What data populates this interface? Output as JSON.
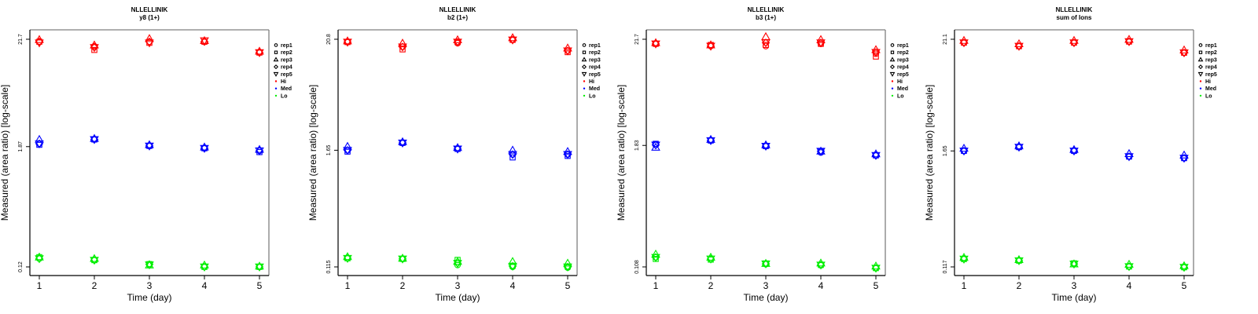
{
  "legend": {
    "shapes": [
      {
        "label": "rep1",
        "shape": "circle"
      },
      {
        "label": "rep2",
        "shape": "square"
      },
      {
        "label": "rep3",
        "shape": "triangle-up"
      },
      {
        "label": "rep4",
        "shape": "diamond"
      },
      {
        "label": "rep5",
        "shape": "triangle-down"
      }
    ],
    "colors": [
      {
        "label": "Hi",
        "color": "#ff0000"
      },
      {
        "label": "Med",
        "color": "#0000ff"
      },
      {
        "label": "Lo",
        "color": "#00ee00"
      }
    ],
    "placement": "right"
  },
  "chart_data": [
    {
      "type": "scatter",
      "title": "NLLELLINIK",
      "subtitle": "y8 (1+)",
      "xlabel": "Time (day)",
      "ylabel": "Measured (area ratio) [log-scale]",
      "yscale": "log",
      "x": [
        1,
        2,
        3,
        4,
        5
      ],
      "xticks": [
        "1",
        "2",
        "3",
        "4",
        "5"
      ],
      "yticks": [
        {
          "value": 21.7,
          "label": "21.7"
        },
        {
          "value": 1.87,
          "label": "1.87"
        },
        {
          "value": 0.12,
          "label": "0.12"
        }
      ],
      "ylim": [
        0.105,
        27
      ],
      "series": [
        {
          "name": "Hi",
          "color": "#ff0000",
          "reps": [
            [
              20.5,
              18.5,
              20.5,
              20.5,
              16.0
            ],
            [
              20.5,
              17.0,
              20.0,
              20.5,
              16.0
            ],
            [
              21.5,
              19.0,
              22.0,
              21.0,
              16.5
            ],
            [
              20.5,
              18.0,
              20.5,
              20.5,
              16.0
            ],
            [
              20.0,
              18.0,
              20.0,
              21.0,
              16.0
            ]
          ]
        },
        {
          "name": "Med",
          "color": "#0000ff",
          "reps": [
            [
              2.0,
              2.2,
              1.9,
              1.8,
              1.7
            ],
            [
              1.95,
              2.2,
              1.9,
              1.8,
              1.65
            ],
            [
              2.2,
              2.25,
              1.95,
              1.85,
              1.75
            ],
            [
              2.0,
              2.2,
              1.9,
              1.8,
              1.7
            ],
            [
              2.0,
              2.2,
              1.9,
              1.8,
              1.7
            ]
          ]
        },
        {
          "name": "Lo",
          "color": "#00ee00",
          "reps": [
            [
              0.145,
              0.14,
              0.125,
              0.12,
              0.12
            ],
            [
              0.15,
              0.14,
              0.128,
              0.12,
              0.12
            ],
            [
              0.15,
              0.145,
              0.125,
              0.125,
              0.122
            ],
            [
              0.145,
              0.14,
              0.127,
              0.12,
              0.12
            ],
            [
              0.145,
              0.14,
              0.126,
              0.12,
              0.12
            ]
          ]
        }
      ]
    },
    {
      "type": "scatter",
      "title": "NLLELLINIK",
      "subtitle": "b2 (1+)",
      "xlabel": "Time (day)",
      "ylabel": "Measured (area ratio) [log-scale]",
      "yscale": "log",
      "x": [
        1,
        2,
        3,
        4,
        5
      ],
      "xticks": [
        "1",
        "2",
        "3",
        "4",
        "5"
      ],
      "yticks": [
        {
          "value": 20.8,
          "label": "20.8"
        },
        {
          "value": 1.65,
          "label": "1.65"
        },
        {
          "value": 0.115,
          "label": "0.115"
        }
      ],
      "ylim": [
        0.1,
        25
      ],
      "series": [
        {
          "name": "Hi",
          "color": "#ff0000",
          "reps": [
            [
              19.5,
              17.5,
              19.0,
              20.5,
              16.0
            ],
            [
              19.5,
              16.5,
              19.5,
              20.5,
              15.5
            ],
            [
              20.0,
              19.0,
              20.5,
              21.5,
              17.0
            ],
            [
              19.5,
              17.5,
              19.5,
              20.5,
              16.0
            ],
            [
              19.5,
              17.5,
              19.5,
              20.5,
              16.0
            ]
          ]
        },
        {
          "name": "Med",
          "color": "#0000ff",
          "reps": [
            [
              1.65,
              1.95,
              1.7,
              1.5,
              1.5
            ],
            [
              1.6,
              1.95,
              1.7,
              1.4,
              1.45
            ],
            [
              1.8,
              2.0,
              1.75,
              1.65,
              1.6
            ],
            [
              1.65,
              1.95,
              1.7,
              1.5,
              1.5
            ],
            [
              1.65,
              1.95,
              1.7,
              1.5,
              1.5
            ]
          ]
        },
        {
          "name": "Lo",
          "color": "#00ee00",
          "reps": [
            [
              0.14,
              0.138,
              0.12,
              0.115,
              0.113
            ],
            [
              0.14,
              0.138,
              0.135,
              0.118,
              0.116
            ],
            [
              0.145,
              0.14,
              0.13,
              0.13,
              0.125
            ],
            [
              0.14,
              0.138,
              0.125,
              0.117,
              0.115
            ],
            [
              0.14,
              0.138,
              0.125,
              0.117,
              0.115
            ]
          ]
        }
      ]
    },
    {
      "type": "scatter",
      "title": "NLLELLINIK",
      "subtitle": "b3 (1+)",
      "xlabel": "Time (day)",
      "ylabel": "Measured (area ratio) [log-scale]",
      "yscale": "log",
      "x": [
        1,
        2,
        3,
        4,
        5
      ],
      "xticks": [
        "1",
        "2",
        "3",
        "4",
        "5"
      ],
      "yticks": [
        {
          "value": 21.7,
          "label": "21.7"
        },
        {
          "value": 1.83,
          "label": "1.83"
        },
        {
          "value": 0.108,
          "label": "0.108"
        }
      ],
      "ylim": [
        0.094,
        27
      ],
      "series": [
        {
          "name": "Hi",
          "color": "#ff0000",
          "reps": [
            [
              19.5,
              18.5,
              18.5,
              19.5,
              15.5
            ],
            [
              19.5,
              19.0,
              19.0,
              19.5,
              14.5
            ],
            [
              20.0,
              19.0,
              23.0,
              21.5,
              17.0
            ],
            [
              19.5,
              18.5,
              20.0,
              20.0,
              16.0
            ],
            [
              19.5,
              18.5,
              20.0,
              20.0,
              16.0
            ]
          ]
        },
        {
          "name": "Med",
          "color": "#0000ff",
          "reps": [
            [
              1.85,
              2.05,
              1.8,
              1.55,
              1.45
            ],
            [
              1.9,
              2.05,
              1.8,
              1.6,
              1.45
            ],
            [
              1.75,
              2.1,
              1.85,
              1.6,
              1.5
            ],
            [
              1.85,
              2.05,
              1.8,
              1.6,
              1.45
            ],
            [
              1.85,
              2.05,
              1.8,
              1.6,
              1.45
            ]
          ]
        },
        {
          "name": "Lo",
          "color": "#00ee00",
          "reps": [
            [
              0.135,
              0.13,
              0.115,
              0.112,
              0.105
            ],
            [
              0.13,
              0.128,
              0.117,
              0.113,
              0.105
            ],
            [
              0.145,
              0.135,
              0.117,
              0.118,
              0.11
            ],
            [
              0.135,
              0.13,
              0.116,
              0.113,
              0.105
            ],
            [
              0.135,
              0.13,
              0.116,
              0.113,
              0.105
            ]
          ]
        }
      ]
    },
    {
      "type": "scatter",
      "title": "NLLELLINIK",
      "subtitle": "sum of Ions",
      "xlabel": "Time (day)",
      "ylabel": "Measured (area ratio) [log-scale]",
      "yscale": "log",
      "x": [
        1,
        2,
        3,
        4,
        5
      ],
      "xticks": [
        "1",
        "2",
        "3",
        "4",
        "5"
      ],
      "yticks": [
        {
          "value": 21.1,
          "label": "21.1"
        },
        {
          "value": 1.65,
          "label": "1.65"
        },
        {
          "value": 0.117,
          "label": "0.117"
        }
      ],
      "ylim": [
        0.102,
        26
      ],
      "series": [
        {
          "name": "Hi",
          "color": "#ff0000",
          "reps": [
            [
              19.5,
              18.0,
              19.5,
              20.0,
              15.5
            ],
            [
              19.5,
              18.0,
              19.5,
              20.0,
              15.5
            ],
            [
              20.5,
              19.0,
              20.5,
              21.0,
              16.5
            ],
            [
              19.5,
              18.0,
              19.5,
              20.0,
              15.5
            ],
            [
              19.5,
              18.0,
              19.5,
              20.0,
              15.5
            ]
          ]
        },
        {
          "name": "Med",
          "color": "#0000ff",
          "reps": [
            [
              1.65,
              1.8,
              1.65,
              1.45,
              1.4
            ],
            [
              1.65,
              1.8,
              1.65,
              1.45,
              1.4
            ],
            [
              1.75,
              1.85,
              1.7,
              1.55,
              1.5
            ],
            [
              1.65,
              1.8,
              1.65,
              1.45,
              1.4
            ],
            [
              1.65,
              1.8,
              1.65,
              1.45,
              1.4
            ]
          ]
        },
        {
          "name": "Lo",
          "color": "#00ee00",
          "reps": [
            [
              0.14,
              0.135,
              0.126,
              0.118,
              0.116
            ],
            [
              0.14,
              0.135,
              0.127,
              0.118,
              0.116
            ],
            [
              0.145,
              0.138,
              0.125,
              0.124,
              0.12
            ],
            [
              0.14,
              0.135,
              0.125,
              0.118,
              0.116
            ],
            [
              0.14,
              0.135,
              0.125,
              0.118,
              0.116
            ]
          ]
        }
      ]
    }
  ]
}
